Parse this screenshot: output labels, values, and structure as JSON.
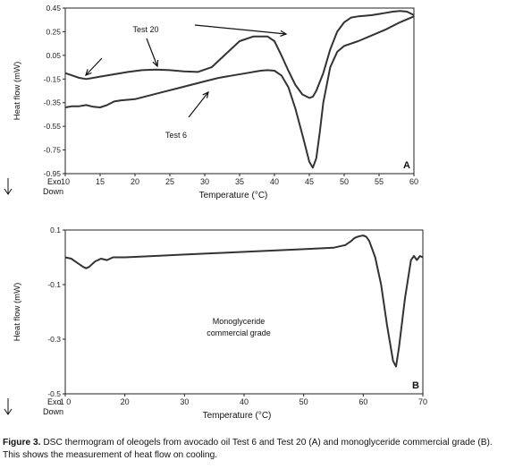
{
  "caption": {
    "label": "Figure 3.",
    "text": "DSC thermogram of oleogels from avocado oil Test 6 and Test 20 (A) and monoglyceride commercial grade (B). This shows the measurement of heat flow on cooling."
  },
  "chart_data": [
    {
      "type": "line",
      "panel_label": "A",
      "xlabel": "Temperature (°C)",
      "ylabel": "Heat flow (mW)",
      "exo_label": "Exo",
      "down_label": "Down",
      "xlim": [
        10,
        60
      ],
      "ylim": [
        -0.95,
        0.45
      ],
      "xticks": [
        "10",
        "15",
        "20",
        "25",
        "30",
        "35",
        "40",
        "45",
        "50",
        "55",
        "60"
      ],
      "yticks": [
        "0.45",
        "0.25",
        "0.05",
        "-0.15",
        "-0.35",
        "-0.55",
        "-0.75",
        "-0.95"
      ],
      "grid": false,
      "annotations": [
        "Test 20",
        "Test 6"
      ],
      "color": "#333333",
      "series": [
        {
          "name": "Test 20",
          "x": [
            10,
            11,
            12,
            13,
            14,
            15,
            17,
            19,
            21,
            23,
            25,
            27,
            29,
            31,
            33,
            35,
            37,
            39,
            40,
            41,
            42,
            43,
            44,
            45,
            45.5,
            46,
            47,
            48,
            49,
            50,
            51,
            52,
            53,
            54,
            55,
            56,
            57,
            58,
            59,
            60
          ],
          "y": [
            -0.1,
            -0.12,
            -0.14,
            -0.15,
            -0.14,
            -0.13,
            -0.11,
            -0.09,
            -0.075,
            -0.07,
            -0.075,
            -0.085,
            -0.09,
            -0.05,
            0.06,
            0.17,
            0.21,
            0.21,
            0.17,
            0.05,
            -0.08,
            -0.2,
            -0.28,
            -0.31,
            -0.3,
            -0.25,
            -0.1,
            0.1,
            0.25,
            0.33,
            0.37,
            0.38,
            0.385,
            0.39,
            0.4,
            0.41,
            0.42,
            0.425,
            0.42,
            0.39
          ]
        },
        {
          "name": "Test 6",
          "x": [
            10,
            11,
            12,
            13,
            14,
            15,
            16,
            17,
            18,
            20,
            22,
            24,
            26,
            28,
            30,
            32,
            34,
            36,
            38,
            39,
            40,
            41,
            42,
            43,
            44,
            45,
            45.5,
            46,
            46.5,
            47,
            48,
            49,
            50,
            52,
            54,
            56,
            58,
            60
          ],
          "y": [
            -0.39,
            -0.38,
            -0.38,
            -0.37,
            -0.385,
            -0.39,
            -0.37,
            -0.34,
            -0.33,
            -0.32,
            -0.29,
            -0.26,
            -0.23,
            -0.2,
            -0.17,
            -0.14,
            -0.12,
            -0.1,
            -0.08,
            -0.075,
            -0.08,
            -0.12,
            -0.22,
            -0.4,
            -0.62,
            -0.85,
            -0.9,
            -0.82,
            -0.6,
            -0.35,
            -0.05,
            0.08,
            0.13,
            0.17,
            0.22,
            0.27,
            0.33,
            0.38
          ]
        }
      ]
    },
    {
      "type": "line",
      "panel_label": "B",
      "xlabel": "Temperature (°C)",
      "ylabel": "Heat flow (mW)",
      "exo_label": "Exo",
      "down_label": "Down",
      "xlim": [
        10,
        70
      ],
      "ylim": [
        -0.5,
        0.1
      ],
      "xticks": [
        "1 0",
        "20",
        "30",
        "40",
        "50",
        "60",
        "70"
      ],
      "yticks": [
        "0.1",
        "-0.1",
        "-0.3",
        "-0.5"
      ],
      "grid": false,
      "annotations": [
        "Monoglyceride",
        "commercial  grade"
      ],
      "color": "#333333",
      "series": [
        {
          "name": "Monoglyceride commercial grade",
          "x": [
            10,
            11,
            12,
            13,
            13.5,
            14,
            15,
            16,
            17,
            18,
            20,
            25,
            30,
            35,
            40,
            45,
            50,
            55,
            57,
            58,
            58.5,
            59,
            59.5,
            60,
            60.5,
            61,
            62,
            63,
            64,
            65,
            65.5,
            66,
            67,
            68,
            68.5,
            69,
            69.5,
            70
          ],
          "y": [
            0.0,
            -0.005,
            -0.02,
            -0.035,
            -0.04,
            -0.035,
            -0.015,
            -0.005,
            -0.01,
            0.0,
            0.0,
            0.005,
            0.01,
            0.015,
            0.02,
            0.025,
            0.03,
            0.035,
            0.045,
            0.06,
            0.07,
            0.075,
            0.078,
            0.08,
            0.075,
            0.06,
            0.0,
            -0.1,
            -0.25,
            -0.38,
            -0.4,
            -0.33,
            -0.15,
            -0.01,
            0.005,
            -0.01,
            0.005,
            0.0
          ]
        }
      ]
    }
  ]
}
